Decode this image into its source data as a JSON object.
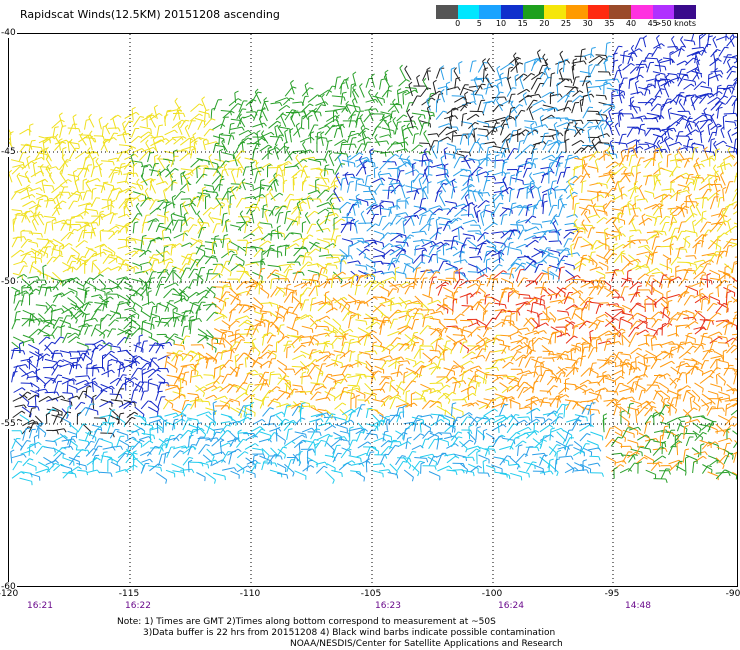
{
  "title": "Rapidscat Winds(12.5KM) 20151208 ascending",
  "color_scale": {
    "labels": [
      "0",
      "5",
      "10",
      "15",
      "20",
      "25",
      "30",
      "35",
      "40",
      "45",
      ">50 knots"
    ],
    "colors": [
      "#555555",
      "#00e6ff",
      "#1aa3ff",
      "#1030cc",
      "#1ea01e",
      "#f5e60a",
      "#ff9a00",
      "#ff2a10",
      "#9a4a2a",
      "#ff30e0",
      "#b030ff",
      "#3a0a8c"
    ]
  },
  "lat_labels": [
    "-40",
    "-45",
    "-50",
    "-55",
    "-60"
  ],
  "lon_labels": [
    "-120",
    "-115",
    "-110",
    "-105",
    "-100",
    "-95",
    "-90"
  ],
  "time_labels": [
    "16:21",
    "16:22",
    "16:23",
    "16:24",
    "14:48"
  ],
  "notes": {
    "line1": "Note: 1) Times are GMT 2)Times along bottom correspond to measurement at ~50S",
    "line2": "3)Data buffer is 22 hrs from 20151208 4) Black wind barbs indicate possible contamination",
    "line3": "NOAA/NESDIS/Center for Satellite Applications and Research"
  }
}
